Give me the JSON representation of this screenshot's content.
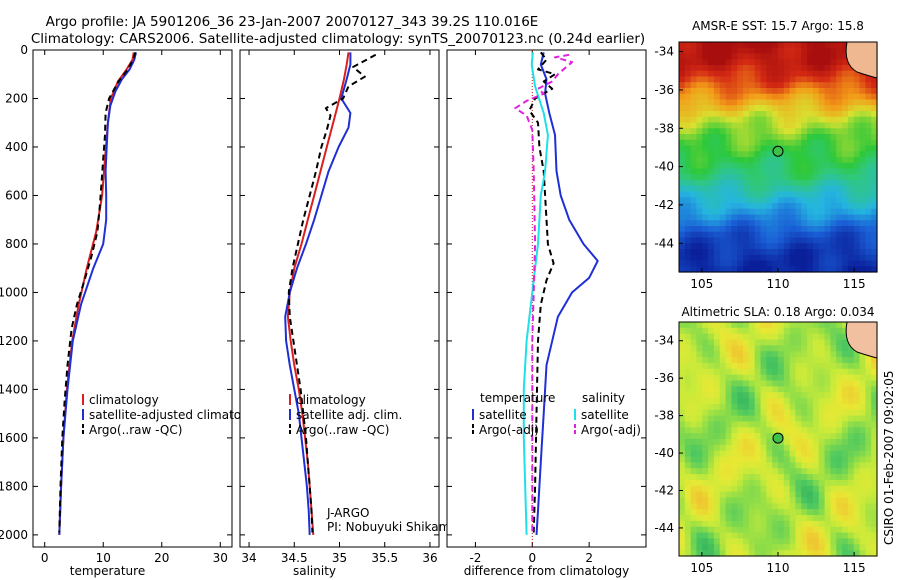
{
  "header": {
    "title_line1": "Argo profile: JA 5901206_36 23-Jan-2007 20070127_343 39.2S 110.016E",
    "title_line2": "Climatology: CARS2006. Satellite-adjusted climatology: synTS_20070123.nc (0.24d earlier)"
  },
  "credit": "CSIRO 01-Feb-2007 09:02:05",
  "colors": {
    "climatology": "#d91f1f",
    "satellite": "#1f2fd6",
    "argo": "#000000",
    "sat_salinity": "#1fe0e8",
    "argo_adj_salinity": "#e020e0"
  },
  "chart_data": [
    {
      "id": "temperature",
      "type": "line",
      "xlabel": "temperature",
      "ylabel": "",
      "xlim": [
        -2,
        32
      ],
      "ylim": [
        2050,
        0
      ],
      "xticks": [
        0,
        10,
        20,
        30
      ],
      "yticks": [
        0,
        200,
        400,
        600,
        800,
        1000,
        1200,
        1400,
        1600,
        1800,
        2000
      ],
      "legend": [
        "climatology",
        "satellite-adjusted climatology",
        "Argo(..raw -QC)"
      ],
      "series": [
        {
          "name": "climatology",
          "color": "climatology",
          "dash": false,
          "points": [
            [
              15.2,
              10
            ],
            [
              15.0,
              40
            ],
            [
              14.0,
              80
            ],
            [
              12.5,
              130
            ],
            [
              11.3,
              200
            ],
            [
              10.8,
              300
            ],
            [
              10.3,
              450
            ],
            [
              9.8,
              600
            ],
            [
              8.8,
              750
            ],
            [
              7.2,
              900
            ],
            [
              5.8,
              1050
            ],
            [
              4.7,
              1200
            ],
            [
              3.8,
              1400
            ],
            [
              3.2,
              1600
            ],
            [
              2.8,
              1800
            ],
            [
              2.5,
              2000
            ]
          ]
        },
        {
          "name": "satellite-adjusted climatology",
          "color": "satellite",
          "dash": false,
          "points": [
            [
              15.6,
              10
            ],
            [
              15.3,
              40
            ],
            [
              14.5,
              80
            ],
            [
              13.2,
              120
            ],
            [
              12.1,
              170
            ],
            [
              11.2,
              230
            ],
            [
              10.8,
              300
            ],
            [
              10.6,
              400
            ],
            [
              10.4,
              500
            ],
            [
              10.5,
              600
            ],
            [
              10.5,
              700
            ],
            [
              10.0,
              800
            ],
            [
              8.3,
              900
            ],
            [
              6.2,
              1050
            ],
            [
              4.8,
              1200
            ],
            [
              3.9,
              1400
            ],
            [
              3.2,
              1600
            ],
            [
              2.8,
              1800
            ],
            [
              2.5,
              2000
            ]
          ]
        },
        {
          "name": "Argo(..raw -QC)",
          "color": "argo",
          "dash": true,
          "points": [
            [
              15.5,
              10
            ],
            [
              15.1,
              40
            ],
            [
              14.2,
              80
            ],
            [
              12.6,
              130
            ],
            [
              11.0,
              200
            ],
            [
              10.4,
              260
            ],
            [
              10.3,
              350
            ],
            [
              10.0,
              450
            ],
            [
              9.7,
              550
            ],
            [
              9.4,
              650
            ],
            [
              9.0,
              750
            ],
            [
              8.0,
              850
            ],
            [
              6.8,
              950
            ],
            [
              5.5,
              1050
            ],
            [
              4.6,
              1150
            ],
            [
              3.9,
              1300
            ],
            [
              3.4,
              1450
            ],
            [
              3.0,
              1600
            ],
            [
              2.7,
              1800
            ],
            [
              2.5,
              1990
            ]
          ]
        }
      ]
    },
    {
      "id": "salinity",
      "type": "line",
      "xlabel": "salinity",
      "ylabel": "",
      "xlim": [
        33.9,
        36.1
      ],
      "ylim": [
        2050,
        0
      ],
      "xticks": [
        34,
        34.5,
        35,
        35.5,
        36
      ],
      "yticks": [
        0,
        200,
        400,
        600,
        800,
        1000,
        1200,
        1400,
        1600,
        1800,
        2000
      ],
      "legend": [
        "climatology",
        "satellite adj. clim.",
        "Argo(..raw -QC)"
      ],
      "annotation": [
        "J-ARGO",
        "PI: Nobuyuki Shikama"
      ],
      "series": [
        {
          "name": "climatology",
          "color": "climatology",
          "dash": false,
          "points": [
            [
              35.1,
              10
            ],
            [
              35.08,
              60
            ],
            [
              35.05,
              120
            ],
            [
              35.0,
              200
            ],
            [
              34.93,
              300
            ],
            [
              34.86,
              400
            ],
            [
              34.79,
              500
            ],
            [
              34.72,
              600
            ],
            [
              34.65,
              700
            ],
            [
              34.58,
              800
            ],
            [
              34.5,
              900
            ],
            [
              34.45,
              1000
            ],
            [
              34.43,
              1100
            ],
            [
              34.46,
              1200
            ],
            [
              34.5,
              1300
            ],
            [
              34.55,
              1400
            ],
            [
              34.59,
              1500
            ],
            [
              34.62,
              1600
            ],
            [
              34.65,
              1700
            ],
            [
              34.67,
              1800
            ],
            [
              34.69,
              1900
            ],
            [
              34.71,
              2000
            ]
          ]
        },
        {
          "name": "satellite adj. clim.",
          "color": "satellite",
          "dash": false,
          "points": [
            [
              35.12,
              10
            ],
            [
              35.12,
              60
            ],
            [
              35.08,
              120
            ],
            [
              35.02,
              200
            ],
            [
              35.12,
              260
            ],
            [
              35.1,
              320
            ],
            [
              34.99,
              400
            ],
            [
              34.88,
              500
            ],
            [
              34.8,
              600
            ],
            [
              34.72,
              700
            ],
            [
              34.63,
              800
            ],
            [
              34.53,
              900
            ],
            [
              34.45,
              1000
            ],
            [
              34.4,
              1100
            ],
            [
              34.41,
              1200
            ],
            [
              34.45,
              1300
            ],
            [
              34.5,
              1400
            ],
            [
              34.55,
              1500
            ],
            [
              34.58,
              1600
            ],
            [
              34.61,
              1700
            ],
            [
              34.64,
              1800
            ],
            [
              34.66,
              1900
            ],
            [
              34.67,
              2000
            ]
          ]
        },
        {
          "name": "Argo(..raw -QC)",
          "color": "argo",
          "dash": true,
          "points": [
            [
              35.4,
              20
            ],
            [
              35.3,
              40
            ],
            [
              35.15,
              70
            ],
            [
              35.28,
              110
            ],
            [
              35.1,
              150
            ],
            [
              35.04,
              200
            ],
            [
              34.85,
              240
            ],
            [
              34.9,
              270
            ],
            [
              34.86,
              330
            ],
            [
              34.8,
              400
            ],
            [
              34.74,
              500
            ],
            [
              34.67,
              600
            ],
            [
              34.6,
              700
            ],
            [
              34.54,
              800
            ],
            [
              34.48,
              900
            ],
            [
              34.44,
              1000
            ],
            [
              34.45,
              1100
            ],
            [
              34.49,
              1200
            ],
            [
              34.53,
              1300
            ],
            [
              34.57,
              1400
            ],
            [
              34.6,
              1500
            ],
            [
              34.63,
              1600
            ],
            [
              34.65,
              1700
            ],
            [
              34.67,
              1800
            ],
            [
              34.69,
              1900
            ],
            [
              34.7,
              1990
            ]
          ]
        }
      ]
    },
    {
      "id": "difference",
      "type": "line",
      "xlabel": "difference from climatology",
      "ylabel": "",
      "xlim": [
        -3,
        4
      ],
      "ylim": [
        2050,
        0
      ],
      "xticks": [
        -2,
        0,
        2
      ],
      "yticks": [
        0,
        200,
        400,
        600,
        800,
        1000,
        1200,
        1400,
        1600,
        1800,
        2000
      ],
      "legend_left": [
        "temperature",
        "satellite",
        "Argo(-adj)"
      ],
      "legend_right": [
        "salinity",
        "satellite",
        "Argo(-adj)"
      ],
      "series": [
        {
          "name": "satellite",
          "group": "temperature",
          "color": "satellite",
          "dash": false,
          "points": [
            [
              0.4,
              10
            ],
            [
              0.3,
              60
            ],
            [
              0.5,
              120
            ],
            [
              0.45,
              180
            ],
            [
              0.6,
              260
            ],
            [
              0.8,
              350
            ],
            [
              0.85,
              500
            ],
            [
              1.0,
              600
            ],
            [
              1.3,
              700
            ],
            [
              1.8,
              800
            ],
            [
              2.3,
              870
            ],
            [
              2.0,
              940
            ],
            [
              1.4,
              1000
            ],
            [
              0.9,
              1100
            ],
            [
              0.5,
              1300
            ],
            [
              0.4,
              1500
            ],
            [
              0.3,
              1700
            ],
            [
              0.2,
              1900
            ],
            [
              0.15,
              2000
            ]
          ]
        },
        {
          "name": "Argo(-adj)",
          "group": "temperature",
          "color": "argo",
          "dash": true,
          "points": [
            [
              0.3,
              10
            ],
            [
              0.5,
              40
            ],
            [
              0.2,
              80
            ],
            [
              0.8,
              100
            ],
            [
              0.4,
              130
            ],
            [
              0.7,
              160
            ],
            [
              0.1,
              200
            ],
            [
              -0.1,
              250
            ],
            [
              0.2,
              300
            ],
            [
              0.25,
              400
            ],
            [
              0.4,
              500
            ],
            [
              0.45,
              600
            ],
            [
              0.5,
              700
            ],
            [
              0.55,
              800
            ],
            [
              0.75,
              880
            ],
            [
              0.5,
              950
            ],
            [
              0.3,
              1050
            ],
            [
              0.2,
              1200
            ],
            [
              0.15,
              1500
            ],
            [
              0.1,
              1800
            ],
            [
              0.05,
              1990
            ]
          ]
        },
        {
          "name": "satellite",
          "group": "salinity",
          "color": "sat_salinity",
          "dash": false,
          "points": [
            [
              0.02,
              10
            ],
            [
              -0.02,
              60
            ],
            [
              0.1,
              150
            ],
            [
              0.4,
              260
            ],
            [
              0.55,
              350
            ],
            [
              0.45,
              500
            ],
            [
              0.3,
              600
            ],
            [
              0.25,
              700
            ],
            [
              0.2,
              800
            ],
            [
              0.1,
              900
            ],
            [
              0.0,
              1000
            ],
            [
              -0.2,
              1200
            ],
            [
              -0.3,
              1400
            ],
            [
              -0.3,
              1600
            ],
            [
              -0.25,
              1800
            ],
            [
              -0.2,
              2000
            ]
          ]
        },
        {
          "name": "Argo(-adj)",
          "group": "salinity",
          "color": "argo_adj_salinity",
          "dash": true,
          "points": [
            [
              1.3,
              20
            ],
            [
              0.8,
              30
            ],
            [
              1.4,
              50
            ],
            [
              0.9,
              100
            ],
            [
              0.7,
              130
            ],
            [
              0.2,
              160
            ],
            [
              0.4,
              180
            ],
            [
              -0.2,
              210
            ],
            [
              -0.6,
              240
            ],
            [
              -0.2,
              270
            ],
            [
              0.0,
              330
            ],
            [
              0.05,
              500
            ],
            [
              0.1,
              800
            ],
            [
              0.05,
              1000
            ],
            [
              0.0,
              1200
            ],
            [
              0.0,
              1600
            ],
            [
              0.0,
              1990
            ]
          ]
        }
      ]
    },
    {
      "id": "sst",
      "type": "heatmap",
      "title": "AMSR-E SST: 15.7 Argo: 15.8",
      "xlim": [
        103.5,
        116.5
      ],
      "ylim": [
        -45.5,
        -33.5
      ],
      "xticks": [
        105,
        110,
        115
      ],
      "yticks": [
        -34,
        -36,
        -38,
        -40,
        -42,
        -44
      ],
      "marker": {
        "lon": 110.0,
        "lat": -39.2
      },
      "colorstops": [
        [
          "#0a1f9a",
          0
        ],
        [
          "#1a5fd6",
          0.15
        ],
        [
          "#25b5e0",
          0.3
        ],
        [
          "#30c878",
          0.45
        ],
        [
          "#2ec83a",
          0.52
        ],
        [
          "#d8e230",
          0.65
        ],
        [
          "#f39a18",
          0.78
        ],
        [
          "#d42a14",
          0.9
        ],
        [
          "#a80e0e",
          1
        ]
      ],
      "lat_band_values": [
        [
          -33.5,
          0.99
        ],
        [
          -34.5,
          0.96
        ],
        [
          -35.5,
          0.88
        ],
        [
          -36.5,
          0.76
        ],
        [
          -37.5,
          0.64
        ],
        [
          -38.5,
          0.56
        ],
        [
          -39.5,
          0.5
        ],
        [
          -40.5,
          0.45
        ],
        [
          -41.5,
          0.34
        ],
        [
          -42.5,
          0.24
        ],
        [
          -43.5,
          0.12
        ],
        [
          -44.5,
          0.05
        ],
        [
          -45.5,
          0.02
        ]
      ]
    },
    {
      "id": "sla",
      "type": "heatmap",
      "title": "Altimetric SLA: 0.18 Argo: 0.034",
      "xlim": [
        103.5,
        116.5
      ],
      "ylim": [
        -45.5,
        -33.0
      ],
      "xticks": [
        105,
        110,
        115
      ],
      "yticks": [
        -34,
        -36,
        -38,
        -40,
        -42,
        -44
      ],
      "marker": {
        "lon": 110.0,
        "lat": -39.2
      },
      "colorstops": [
        [
          "#2aa65a",
          0
        ],
        [
          "#4cc860",
          0.25
        ],
        [
          "#8fdd48",
          0.45
        ],
        [
          "#c9ea3a",
          0.6
        ],
        [
          "#e8e834",
          0.75
        ],
        [
          "#f0c030",
          1
        ]
      ]
    }
  ]
}
